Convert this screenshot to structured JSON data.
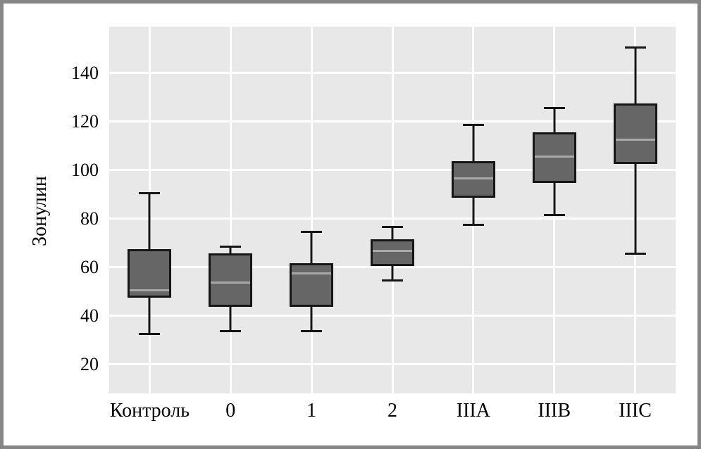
{
  "chart_data": {
    "type": "boxplot",
    "title": "",
    "ylabel": "Зонулин",
    "xlabel": "",
    "categories": [
      "Контроль",
      "0",
      "1",
      "2",
      "IIIA",
      "IIIB",
      "IIIC"
    ],
    "series": [
      {
        "label": "Контроль",
        "min": 34,
        "q1": 49,
        "median": 52,
        "q3": 69,
        "max": 92
      },
      {
        "label": "0",
        "min": 35,
        "q1": 45,
        "median": 55,
        "q3": 67,
        "max": 70
      },
      {
        "label": "1",
        "min": 35,
        "q1": 45,
        "median": 59,
        "q3": 63,
        "max": 76
      },
      {
        "label": "2",
        "min": 56,
        "q1": 62,
        "median": 68,
        "q3": 73,
        "max": 78
      },
      {
        "label": "IIIA",
        "min": 79,
        "q1": 90,
        "median": 98,
        "q3": 105,
        "max": 120
      },
      {
        "label": "IIIB",
        "min": 83,
        "q1": 96,
        "median": 107,
        "q3": 117,
        "max": 127
      },
      {
        "label": "IIIC",
        "min": 67,
        "q1": 104,
        "median": 114,
        "q3": 129,
        "max": 152
      }
    ],
    "yticks": [
      20,
      40,
      60,
      80,
      100,
      120,
      140
    ],
    "ylim": [
      8,
      159
    ],
    "grid": "on",
    "legend": "none",
    "colors": {
      "frame": "#868686",
      "background": "#ffffff",
      "plot_bg": "#e8e8e8",
      "grid": "#ffffff",
      "box_fill": "#666666",
      "box_border": "#161616",
      "median": "#a9a9a9",
      "text": "#000000"
    }
  }
}
